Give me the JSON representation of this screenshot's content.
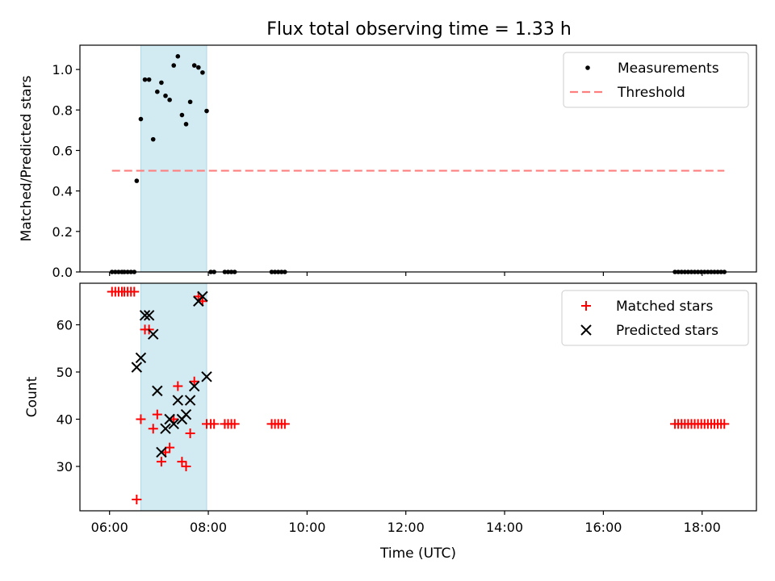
{
  "title": "Flux total observing time = 1.33 h",
  "colors": {
    "threshold": "#ff7f7f",
    "highlight": "#add8e6",
    "matched": "#ff0000",
    "predicted": "#000000",
    "measure": "#000000"
  },
  "chart_data": [
    {
      "type": "scatter",
      "ylabel": "Matched/Predicted stars",
      "ylim": [
        0,
        1.12
      ],
      "xlim": [
        "05:24",
        "19:06"
      ],
      "yticks": [
        "0.0",
        "0.2",
        "0.4",
        "0.6",
        "0.8",
        "1.0"
      ],
      "highlight_span": [
        "06:38",
        "07:58"
      ],
      "legend": {
        "placement": "top-right",
        "entries": [
          "Measurements",
          "Threshold"
        ]
      },
      "threshold": {
        "name": "Threshold",
        "value": 0.5,
        "x_range": [
          "06:03",
          "18:27"
        ]
      },
      "series": [
        {
          "name": "Measurements",
          "points": [
            [
              "06:03",
              0
            ],
            [
              "06:07",
              0
            ],
            [
              "06:11",
              0
            ],
            [
              "06:15",
              0
            ],
            [
              "06:18",
              0
            ],
            [
              "06:22",
              0
            ],
            [
              "06:26",
              0
            ],
            [
              "06:30",
              0
            ],
            [
              "06:33",
              0.45
            ],
            [
              "06:38",
              0.755
            ],
            [
              "06:43",
              0.95
            ],
            [
              "06:48",
              0.95
            ],
            [
              "06:53",
              0.655
            ],
            [
              "06:58",
              0.89
            ],
            [
              "07:03",
              0.935
            ],
            [
              "07:08",
              0.87
            ],
            [
              "07:13",
              0.85
            ],
            [
              "07:18",
              1.02
            ],
            [
              "07:23",
              1.065
            ],
            [
              "07:28",
              0.775
            ],
            [
              "07:33",
              0.73
            ],
            [
              "07:38",
              0.84
            ],
            [
              "07:43",
              1.02
            ],
            [
              "07:48",
              1.01
            ],
            [
              "07:53",
              0.985
            ],
            [
              "07:58",
              0.795
            ],
            [
              "08:03",
              0
            ],
            [
              "08:07",
              0
            ],
            [
              "08:20",
              0
            ],
            [
              "08:24",
              0
            ],
            [
              "08:28",
              0
            ],
            [
              "08:32",
              0
            ],
            [
              "09:17",
              0
            ],
            [
              "09:21",
              0
            ],
            [
              "09:25",
              0
            ],
            [
              "09:29",
              0
            ],
            [
              "09:33",
              0
            ],
            [
              "17:27",
              0
            ],
            [
              "17:31",
              0
            ],
            [
              "17:35",
              0
            ],
            [
              "17:39",
              0
            ],
            [
              "17:43",
              0
            ],
            [
              "17:47",
              0
            ],
            [
              "17:51",
              0
            ],
            [
              "17:55",
              0
            ],
            [
              "17:59",
              0
            ],
            [
              "18:03",
              0
            ],
            [
              "18:07",
              0
            ],
            [
              "18:11",
              0
            ],
            [
              "18:15",
              0
            ],
            [
              "18:19",
              0
            ],
            [
              "18:23",
              0
            ],
            [
              "18:27",
              0
            ]
          ]
        }
      ]
    },
    {
      "type": "scatter",
      "ylabel": "Count",
      "xlabel": "Time (UTC)",
      "ylim": [
        20.6,
        68.8
      ],
      "xlim": [
        "05:24",
        "19:06"
      ],
      "yticks": [
        "30",
        "40",
        "50",
        "60"
      ],
      "xticks": [
        "06:00",
        "08:00",
        "10:00",
        "12:00",
        "14:00",
        "16:00",
        "18:00"
      ],
      "highlight_span": [
        "06:38",
        "07:58"
      ],
      "legend": {
        "placement": "top-right",
        "entries": [
          "Matched stars",
          "Predicted stars"
        ]
      },
      "series": [
        {
          "name": "Matched stars",
          "points": [
            [
              "06:03",
              67
            ],
            [
              "06:07",
              67
            ],
            [
              "06:11",
              67
            ],
            [
              "06:15",
              67
            ],
            [
              "06:18",
              67
            ],
            [
              "06:22",
              67
            ],
            [
              "06:26",
              67
            ],
            [
              "06:30",
              67
            ],
            [
              "06:33",
              23
            ],
            [
              "06:38",
              40
            ],
            [
              "06:43",
              59
            ],
            [
              "06:48",
              59
            ],
            [
              "06:53",
              38
            ],
            [
              "06:58",
              41
            ],
            [
              "07:03",
              31
            ],
            [
              "07:08",
              33
            ],
            [
              "07:13",
              34
            ],
            [
              "07:18",
              40
            ],
            [
              "07:23",
              47
            ],
            [
              "07:28",
              31
            ],
            [
              "07:33",
              30
            ],
            [
              "07:38",
              37
            ],
            [
              "07:43",
              48
            ],
            [
              "07:48",
              66
            ],
            [
              "07:53",
              65
            ],
            [
              "07:58",
              39
            ],
            [
              "08:03",
              39
            ],
            [
              "08:07",
              39
            ],
            [
              "08:20",
              39
            ],
            [
              "08:24",
              39
            ],
            [
              "08:28",
              39
            ],
            [
              "08:32",
              39
            ],
            [
              "09:17",
              39
            ],
            [
              "09:21",
              39
            ],
            [
              "09:25",
              39
            ],
            [
              "09:29",
              39
            ],
            [
              "09:33",
              39
            ],
            [
              "17:27",
              39
            ],
            [
              "17:31",
              39
            ],
            [
              "17:35",
              39
            ],
            [
              "17:39",
              39
            ],
            [
              "17:43",
              39
            ],
            [
              "17:47",
              39
            ],
            [
              "17:51",
              39
            ],
            [
              "17:55",
              39
            ],
            [
              "17:59",
              39
            ],
            [
              "18:03",
              39
            ],
            [
              "18:07",
              39
            ],
            [
              "18:11",
              39
            ],
            [
              "18:15",
              39
            ],
            [
              "18:19",
              39
            ],
            [
              "18:23",
              39
            ],
            [
              "18:27",
              39
            ]
          ]
        },
        {
          "name": "Predicted stars",
          "points": [
            [
              "06:33",
              51
            ],
            [
              "06:38",
              53
            ],
            [
              "06:43",
              62
            ],
            [
              "06:48",
              62
            ],
            [
              "06:53",
              58
            ],
            [
              "06:58",
              46
            ],
            [
              "07:03",
              33
            ],
            [
              "07:08",
              38
            ],
            [
              "07:13",
              40
            ],
            [
              "07:18",
              39
            ],
            [
              "07:23",
              44
            ],
            [
              "07:28",
              40
            ],
            [
              "07:33",
              41
            ],
            [
              "07:38",
              44
            ],
            [
              "07:43",
              47
            ],
            [
              "07:48",
              65
            ],
            [
              "07:53",
              66
            ],
            [
              "07:58",
              49
            ]
          ]
        }
      ]
    }
  ]
}
